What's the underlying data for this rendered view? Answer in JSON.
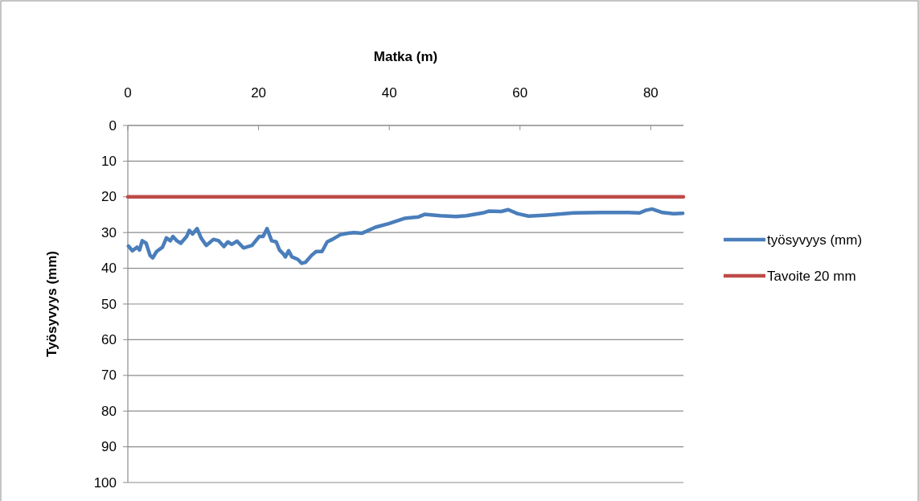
{
  "chart_data": {
    "type": "line",
    "xlabel": "Matka (m)",
    "ylabel": "Työsyvyys (mm)",
    "xlim": [
      0,
      85
    ],
    "xticks": [
      0,
      20,
      40,
      60,
      80
    ],
    "ylim": [
      100,
      0
    ],
    "yticks": [
      0,
      10,
      20,
      30,
      40,
      50,
      60,
      70,
      80,
      90,
      100
    ],
    "grid": "y",
    "legend": "right",
    "line_style": "solid",
    "marker": "none",
    "series": [
      {
        "name": "työsyvyys (mm)",
        "color": "#4a7ebb",
        "x": [
          0.1,
          0.7,
          1.4,
          1.8,
          2.2,
          2.8,
          3.4,
          3.8,
          4.4,
          5.3,
          5.9,
          6.5,
          6.9,
          7.5,
          8.1,
          9,
          9.4,
          9.9,
          10.6,
          11.2,
          12,
          13.1,
          13.9,
          14.7,
          15.3,
          15.9,
          16.7,
          17.7,
          19,
          20.1,
          20.7,
          21.3,
          22,
          22.7,
          23.2,
          23.8,
          24.1,
          24.6,
          25.1,
          26,
          26.6,
          27.2,
          28.1,
          28.8,
          29.7,
          30.5,
          31.3,
          32.5,
          33.7,
          34.6,
          35.8,
          37.9,
          39.9,
          42.4,
          44.5,
          45.4,
          47.8,
          50.2,
          51.8,
          54.3,
          55.2,
          57.1,
          58.2,
          59.6,
          61.3,
          64.1,
          68.2,
          72.4,
          76.5,
          78.3,
          79.2,
          80.2,
          81.8,
          83.5,
          84.9
        ],
        "values": [
          33.8,
          35.1,
          34.1,
          34.9,
          32.3,
          33,
          36.4,
          37.1,
          35.3,
          34.1,
          31.5,
          32.3,
          31.1,
          32.3,
          33,
          31.1,
          29.4,
          30.4,
          28.9,
          31.5,
          33.6,
          31.9,
          32.3,
          33.9,
          32.6,
          33.3,
          32.4,
          34.3,
          33.6,
          31.1,
          31.1,
          28.9,
          32.3,
          32.6,
          34.9,
          36,
          36.8,
          35.1,
          36.8,
          37.5,
          38.6,
          38.3,
          36.4,
          35.3,
          35.3,
          32.6,
          31.9,
          30.6,
          30.2,
          30,
          30.2,
          28.5,
          27.5,
          26,
          25.6,
          24.9,
          25.3,
          25.5,
          25.3,
          24.5,
          24,
          24.1,
          23.6,
          24.7,
          25.4,
          25.1,
          24.5,
          24.4,
          24.4,
          24.5,
          23.8,
          23.4,
          24.4,
          24.7,
          24.6
        ]
      },
      {
        "name": "Tavoite 20 mm",
        "color": "#be4b48",
        "x": [
          0,
          85
        ],
        "values": [
          20,
          20
        ]
      }
    ]
  }
}
